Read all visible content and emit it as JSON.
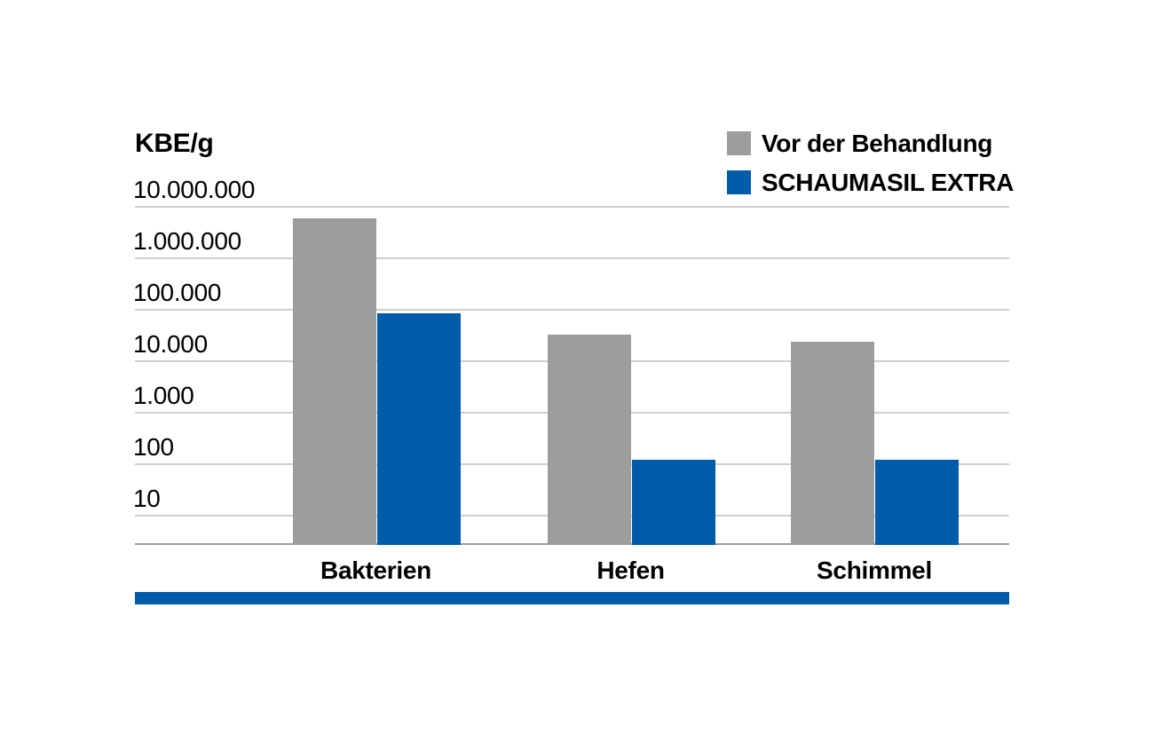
{
  "chart_data": {
    "type": "bar",
    "scale": "log10",
    "title": "",
    "ylabel": "KBE/g",
    "xlabel": "",
    "categories": [
      "Bakterien",
      "Hefen",
      "Schimmel"
    ],
    "series": [
      {
        "name": "Vor der Behandlung",
        "color": "#9D9D9C",
        "values": [
          6000000,
          33000,
          24000
        ]
      },
      {
        "name": "SCHAUMASIL EXTRA",
        "color": "#005CA9",
        "values": [
          85000,
          120,
          120
        ]
      }
    ],
    "yticks": [
      {
        "value": 10000000,
        "label": "10.000.000"
      },
      {
        "value": 1000000,
        "label": "1.000.000"
      },
      {
        "value": 100000,
        "label": "100.000"
      },
      {
        "value": 10000,
        "label": "10.000"
      },
      {
        "value": 1000,
        "label": "1.000"
      },
      {
        "value": 100,
        "label": "100"
      },
      {
        "value": 10,
        "label": "10"
      }
    ],
    "ylim": [
      3,
      10000000
    ],
    "grid": true,
    "legend_position": "top-right"
  },
  "legend": {
    "items": [
      {
        "label": "Vor der Behandlung",
        "color": "#9D9D9C"
      },
      {
        "label": "SCHAUMASIL EXTRA",
        "color": "#005CA9"
      }
    ]
  },
  "colors": {
    "gridline": "#cfcfcf",
    "baseline": "#9b9b9b",
    "accent_blue": "#005CA9",
    "bar_gray": "#9D9D9C"
  },
  "decoration": {
    "bottom_rule_color": "#005CA9"
  }
}
